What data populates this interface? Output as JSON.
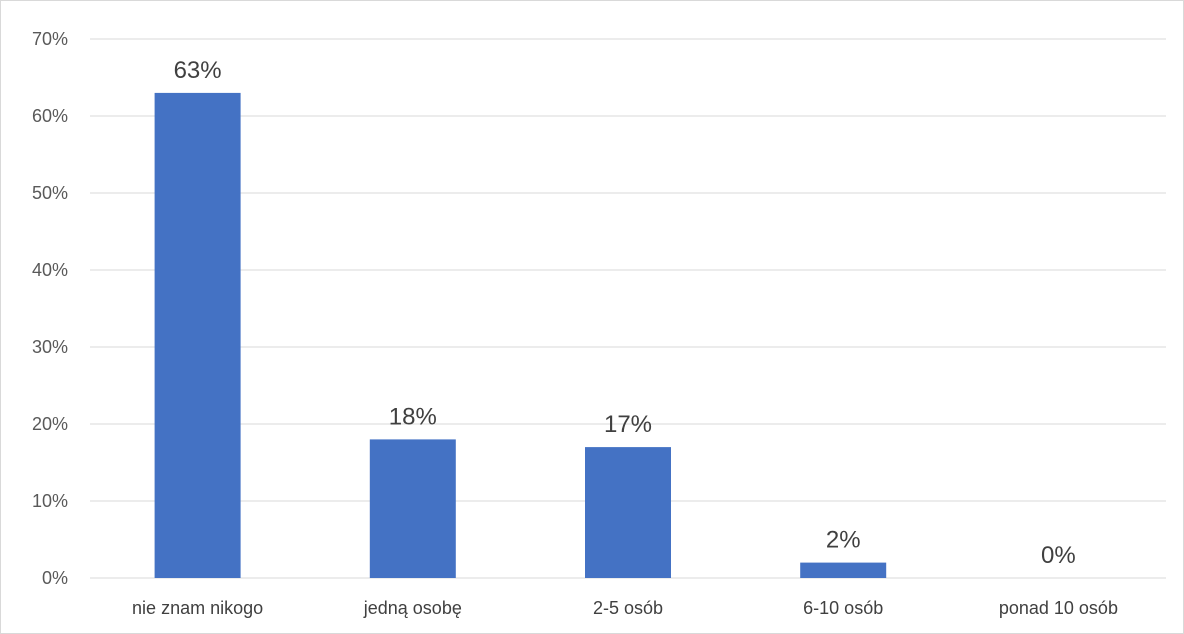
{
  "chart_data": {
    "type": "bar",
    "categories": [
      "nie znam nikogo",
      "jedną osobę",
      "2-5 osób",
      "6-10 osób",
      "ponad 10 osób"
    ],
    "values": [
      63,
      18,
      17,
      2,
      0
    ],
    "data_labels": [
      "63%",
      "18%",
      "17%",
      "2%",
      "0%"
    ],
    "ylim": [
      0,
      70
    ],
    "y_ticks": [
      0,
      10,
      20,
      30,
      40,
      50,
      60,
      70
    ],
    "y_tick_labels": [
      "0%",
      "10%",
      "20%",
      "30%",
      "40%",
      "50%",
      "60%",
      "70%"
    ],
    "grid": true,
    "legend": "none",
    "title": "",
    "xlabel": "",
    "ylabel": "",
    "bar_color": "#4472C4",
    "grid_color": "#d9d9d9",
    "text_color": "#404040"
  }
}
